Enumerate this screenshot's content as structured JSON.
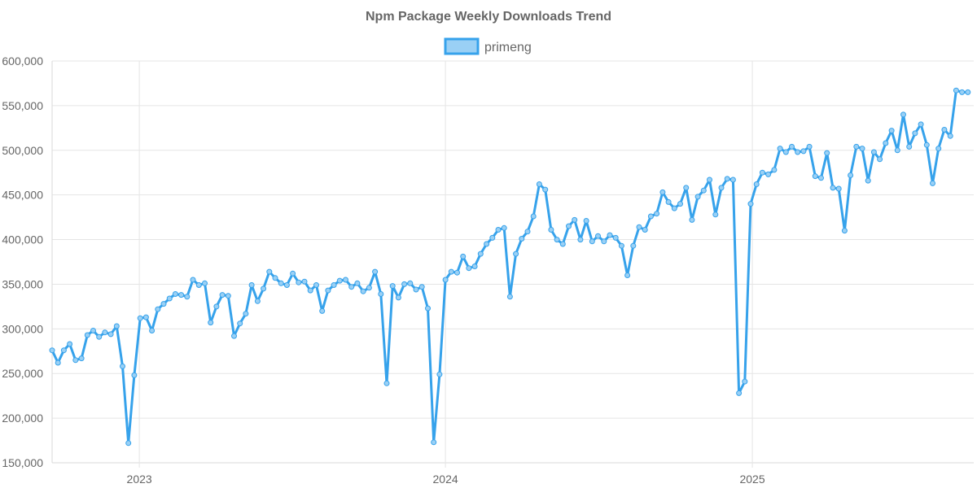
{
  "chart_data": {
    "type": "line",
    "title": "Npm Package Weekly Downloads Trend",
    "xlabel": "",
    "ylabel": "",
    "ylim": [
      150000,
      600000
    ],
    "y_ticks": [
      150000,
      200000,
      250000,
      300000,
      350000,
      400000,
      450000,
      500000,
      550000,
      600000
    ],
    "y_tick_labels": [
      "150,000",
      "200,000",
      "250,000",
      "300,000",
      "350,000",
      "400,000",
      "450,000",
      "500,000",
      "550,000",
      "600,000"
    ],
    "x_range": [
      "2022-09-19",
      "2025-09-22"
    ],
    "x_ticks": [
      "2023-01-01",
      "2024-01-01",
      "2025-01-01"
    ],
    "x_tick_labels": [
      "2023",
      "2024",
      "2025"
    ],
    "grid": true,
    "legend_position": "top",
    "series": [
      {
        "name": "primeng",
        "color": "#36a2eb",
        "fill_color": "#9ad0f5",
        "x_start": "2022-09-19",
        "x_step_days": 7,
        "values": [
          276000,
          262000,
          276000,
          283000,
          265000,
          267000,
          293000,
          298000,
          291000,
          296000,
          294000,
          303000,
          258000,
          172000,
          248000,
          312000,
          313000,
          298000,
          322000,
          328000,
          334000,
          339000,
          338000,
          336000,
          355000,
          349000,
          351000,
          307000,
          325000,
          338000,
          337000,
          292000,
          306000,
          317000,
          349000,
          331000,
          345000,
          364000,
          357000,
          351000,
          349000,
          362000,
          352000,
          353000,
          343000,
          349000,
          320000,
          343000,
          349000,
          354000,
          355000,
          347000,
          351000,
          342000,
          346000,
          364000,
          339000,
          239000,
          348000,
          335000,
          350000,
          351000,
          344000,
          347000,
          323000,
          173000,
          249000,
          355000,
          364000,
          363000,
          381000,
          368000,
          370000,
          384000,
          395000,
          402000,
          411000,
          413000,
          336000,
          384000,
          401000,
          409000,
          426000,
          462000,
          456000,
          411000,
          400000,
          395000,
          415000,
          422000,
          400000,
          421000,
          398000,
          404000,
          398000,
          405000,
          402000,
          393000,
          360000,
          393000,
          414000,
          411000,
          426000,
          429000,
          453000,
          442000,
          435000,
          440000,
          458000,
          422000,
          448000,
          455000,
          467000,
          428000,
          458000,
          468000,
          467000,
          228000,
          241000,
          440000,
          462000,
          475000,
          473000,
          478000,
          502000,
          498000,
          504000,
          498000,
          499000,
          504000,
          471000,
          469000,
          497000,
          458000,
          457000,
          410000,
          472000,
          504000,
          502000,
          466000,
          498000,
          490000,
          508000,
          522000,
          500000,
          540000,
          504000,
          519000,
          529000,
          506000,
          463000,
          502000,
          523000,
          516000,
          567000,
          565000,
          565000
        ]
      }
    ]
  }
}
